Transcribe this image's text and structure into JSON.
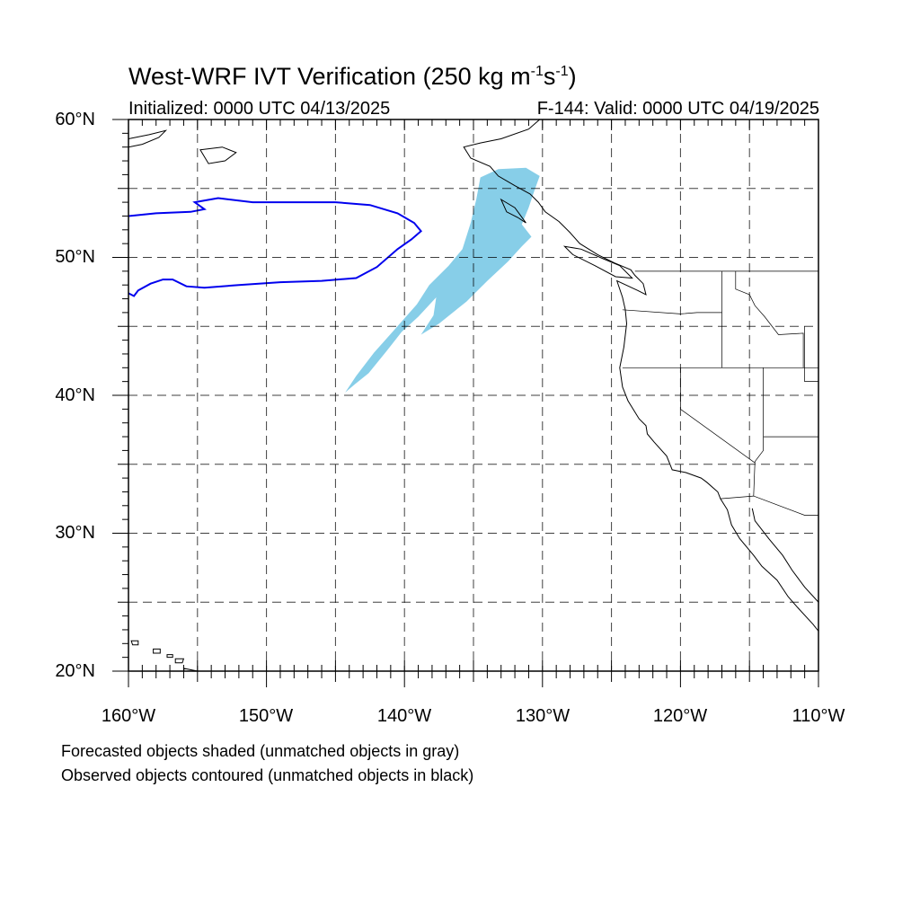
{
  "title": {
    "main": "West-WRF IVT Verification (250 kg m",
    "exp1": "-1",
    "mid": "s",
    "exp2": "-1",
    "end": ")"
  },
  "subtitle_left": "Initialized: 0000 UTC 04/13/2025",
  "subtitle_right": "F-144: Valid: 0000 UTC 04/19/2025",
  "lat_labels": [
    "60°N",
    "50°N",
    "40°N",
    "30°N",
    "20°N"
  ],
  "lon_labels": [
    "160°W",
    "150°W",
    "140°W",
    "130°W",
    "120°W",
    "110°W"
  ],
  "notes": [
    "Forecasted objects shaded (unmatched objects in gray)",
    "Observed objects contoured (unmatched objects in black)"
  ],
  "map": {
    "lon_range": [
      -160,
      -110
    ],
    "lat_range": [
      20,
      60
    ],
    "grid_lon": [
      -155,
      -150,
      -145,
      -140,
      -135,
      -130,
      -125,
      -120,
      -115
    ],
    "grid_lat": [
      25,
      30,
      35,
      40,
      45,
      50,
      55
    ],
    "forecast_color": "#87CEE8",
    "observed_color": "#0000EE",
    "forecast_object": [
      [
        -134.5,
        55.8
      ],
      [
        -133.2,
        56.4
      ],
      [
        -131.2,
        56.5
      ],
      [
        -130.2,
        55.9
      ],
      [
        -130.6,
        54.8
      ],
      [
        -131.0,
        53.6
      ],
      [
        -131.5,
        52.4
      ],
      [
        -130.8,
        51.5
      ],
      [
        -131.5,
        50.8
      ],
      [
        -132.5,
        49.7
      ],
      [
        -134.0,
        48.3
      ],
      [
        -135.5,
        46.8
      ],
      [
        -137.5,
        45.2
      ],
      [
        -138.8,
        44.4
      ],
      [
        -137.9,
        45.8
      ],
      [
        -137.7,
        47.1
      ],
      [
        -139.0,
        45.7
      ],
      [
        -140.2,
        44.6
      ],
      [
        -141.3,
        43.2
      ],
      [
        -142.6,
        41.6
      ],
      [
        -143.6,
        40.8
      ],
      [
        -144.3,
        40.2
      ],
      [
        -143.5,
        41.4
      ],
      [
        -142.2,
        43.1
      ],
      [
        -140.6,
        44.9
      ],
      [
        -139.1,
        46.6
      ],
      [
        -138.2,
        48.0
      ],
      [
        -136.8,
        49.4
      ],
      [
        -135.8,
        50.6
      ],
      [
        -135.2,
        52.5
      ],
      [
        -134.8,
        54.2
      ]
    ],
    "observed_object": [
      [
        -160.0,
        53.0
      ],
      [
        -158.0,
        53.2
      ],
      [
        -155.5,
        53.3
      ],
      [
        -154.5,
        53.5
      ],
      [
        -155.2,
        54.0
      ],
      [
        -153.5,
        54.3
      ],
      [
        -151.0,
        54.0
      ],
      [
        -148.0,
        54.0
      ],
      [
        -145.0,
        54.0
      ],
      [
        -142.5,
        53.8
      ],
      [
        -140.5,
        53.2
      ],
      [
        -139.3,
        52.5
      ],
      [
        -138.8,
        51.9
      ],
      [
        -139.5,
        51.3
      ],
      [
        -140.5,
        50.6
      ],
      [
        -142.0,
        49.3
      ],
      [
        -143.5,
        48.5
      ],
      [
        -146.0,
        48.3
      ],
      [
        -149.0,
        48.2
      ],
      [
        -152.0,
        48.0
      ],
      [
        -154.5,
        47.8
      ],
      [
        -155.8,
        47.9
      ],
      [
        -156.8,
        48.4
      ],
      [
        -157.5,
        48.4
      ],
      [
        -158.4,
        48.1
      ],
      [
        -159.3,
        47.6
      ],
      [
        -159.6,
        47.2
      ],
      [
        -160.0,
        47.4
      ]
    ],
    "coastline": [
      [
        -130.2,
        60.0
      ],
      [
        -131.0,
        59.3
      ],
      [
        -133.0,
        58.6
      ],
      [
        -134.5,
        58.3
      ],
      [
        -135.7,
        58.0
      ],
      [
        -135.2,
        57.2
      ],
      [
        -133.8,
        56.6
      ],
      [
        -133.2,
        55.9
      ],
      [
        -132.0,
        55.2
      ],
      [
        -130.9,
        54.6
      ],
      [
        -130.3,
        54.0
      ],
      [
        -129.8,
        53.3
      ],
      [
        -128.8,
        52.6
      ],
      [
        -128.0,
        51.8
      ],
      [
        -127.3,
        51.0
      ],
      [
        -126.0,
        50.2
      ],
      [
        -124.8,
        49.6
      ],
      [
        -123.6,
        49.1
      ],
      [
        -123.3,
        48.7
      ],
      [
        -122.7,
        48.1
      ],
      [
        -122.5,
        47.3
      ],
      [
        -123.1,
        47.6
      ],
      [
        -124.6,
        48.3
      ],
      [
        -124.2,
        47.1
      ],
      [
        -124.0,
        46.2
      ],
      [
        -123.9,
        45.2
      ],
      [
        -124.1,
        43.5
      ],
      [
        -124.4,
        42.0
      ],
      [
        -124.2,
        40.6
      ],
      [
        -123.8,
        39.6
      ],
      [
        -123.0,
        38.3
      ],
      [
        -122.5,
        37.8
      ],
      [
        -122.4,
        37.2
      ],
      [
        -121.9,
        36.6
      ],
      [
        -121.0,
        35.6
      ],
      [
        -120.6,
        34.6
      ],
      [
        -119.6,
        34.4
      ],
      [
        -118.5,
        34.0
      ],
      [
        -118.1,
        33.7
      ],
      [
        -117.3,
        33.0
      ],
      [
        -117.1,
        32.5
      ],
      [
        -116.6,
        31.7
      ],
      [
        -116.3,
        30.6
      ],
      [
        -115.7,
        29.6
      ],
      [
        -114.7,
        28.4
      ],
      [
        -114.1,
        27.6
      ],
      [
        -113.0,
        26.6
      ],
      [
        -112.2,
        25.4
      ],
      [
        -111.5,
        24.6
      ],
      [
        -110.4,
        23.4
      ],
      [
        -110.0,
        22.9
      ]
    ],
    "gulf_coast": [
      [
        -114.8,
        31.8
      ],
      [
        -114.6,
        30.9
      ],
      [
        -113.6,
        29.6
      ],
      [
        -112.6,
        28.4
      ],
      [
        -111.9,
        27.3
      ],
      [
        -111.0,
        26.1
      ],
      [
        -110.0,
        25.0
      ]
    ],
    "vancouver_island": [
      [
        -128.4,
        50.8
      ],
      [
        -127.2,
        50.6
      ],
      [
        -125.6,
        49.9
      ],
      [
        -124.4,
        49.4
      ],
      [
        -123.5,
        48.5
      ],
      [
        -124.7,
        48.6
      ],
      [
        -126.2,
        49.4
      ],
      [
        -127.8,
        50.2
      ]
    ],
    "haida_gwaii": [
      [
        -133.0,
        54.2
      ],
      [
        -132.0,
        53.6
      ],
      [
        -131.2,
        52.5
      ],
      [
        -131.8,
        52.9
      ],
      [
        -132.6,
        53.3
      ]
    ],
    "alaska_coast": [
      [
        -160.0,
        58.6
      ],
      [
        -158.5,
        58.9
      ],
      [
        -157.3,
        59.2
      ],
      [
        -157.8,
        58.7
      ],
      [
        -159.0,
        58.2
      ],
      [
        -160.0,
        58.0
      ]
    ],
    "kodiak": [
      [
        -154.8,
        57.8
      ],
      [
        -153.2,
        58.0
      ],
      [
        -152.2,
        57.6
      ],
      [
        -153.0,
        57.0
      ],
      [
        -154.2,
        56.8
      ]
    ],
    "hawaii": [
      [
        [
          -159.8,
          22.2
        ],
        [
          -159.3,
          22.2
        ],
        [
          -159.3,
          21.9
        ],
        [
          -159.7,
          21.9
        ]
      ],
      [
        [
          -158.2,
          21.6
        ],
        [
          -157.7,
          21.6
        ],
        [
          -157.7,
          21.3
        ],
        [
          -158.2,
          21.3
        ]
      ],
      [
        [
          -157.2,
          21.2
        ],
        [
          -156.8,
          21.2
        ],
        [
          -156.8,
          21.0
        ],
        [
          -157.2,
          21.0
        ]
      ],
      [
        [
          -156.6,
          20.9
        ],
        [
          -156.0,
          20.9
        ],
        [
          -156.1,
          20.6
        ],
        [
          -156.6,
          20.6
        ]
      ],
      [
        [
          -156.0,
          20.2
        ],
        [
          -155.0,
          20.0
        ],
        [
          -154.8,
          19.6
        ],
        [
          -155.9,
          19.6
        ]
      ]
    ],
    "borders": [
      [
        [
          -123.3,
          49.0
        ],
        [
          -110.0,
          49.0
        ]
      ],
      [
        [
          -124.2,
          46.2
        ],
        [
          -120.0,
          45.9
        ],
        [
          -118.8,
          46.0
        ],
        [
          -117.0,
          46.0
        ]
      ],
      [
        [
          -124.2,
          42.0
        ],
        [
          -110.0,
          42.0
        ]
      ],
      [
        [
          -117.0,
          49.0
        ],
        [
          -117.0,
          42.0
        ]
      ],
      [
        [
          -116.0,
          49.0
        ],
        [
          -116.0,
          47.7
        ],
        [
          -115.0,
          47.3
        ],
        [
          -114.6,
          46.5
        ],
        [
          -113.9,
          45.7
        ],
        [
          -112.9,
          44.4
        ],
        [
          -111.1,
          44.5
        ],
        [
          -111.1,
          42.0
        ]
      ],
      [
        [
          -120.0,
          42.0
        ],
        [
          -120.0,
          39.0
        ],
        [
          -114.6,
          35.1
        ]
      ],
      [
        [
          -114.0,
          42.0
        ],
        [
          -114.0,
          36.0
        ],
        [
          -114.6,
          35.2
        ],
        [
          -114.7,
          32.7
        ]
      ],
      [
        [
          -117.1,
          32.5
        ],
        [
          -114.7,
          32.7
        ],
        [
          -111.0,
          31.3
        ],
        [
          -108.2,
          31.3
        ]
      ],
      [
        [
          -114.0,
          37.0
        ],
        [
          -109.0,
          37.0
        ]
      ],
      [
        [
          -111.0,
          45.0
        ],
        [
          -111.0,
          41.0
        ],
        [
          -109.0,
          41.0
        ]
      ]
    ]
  }
}
